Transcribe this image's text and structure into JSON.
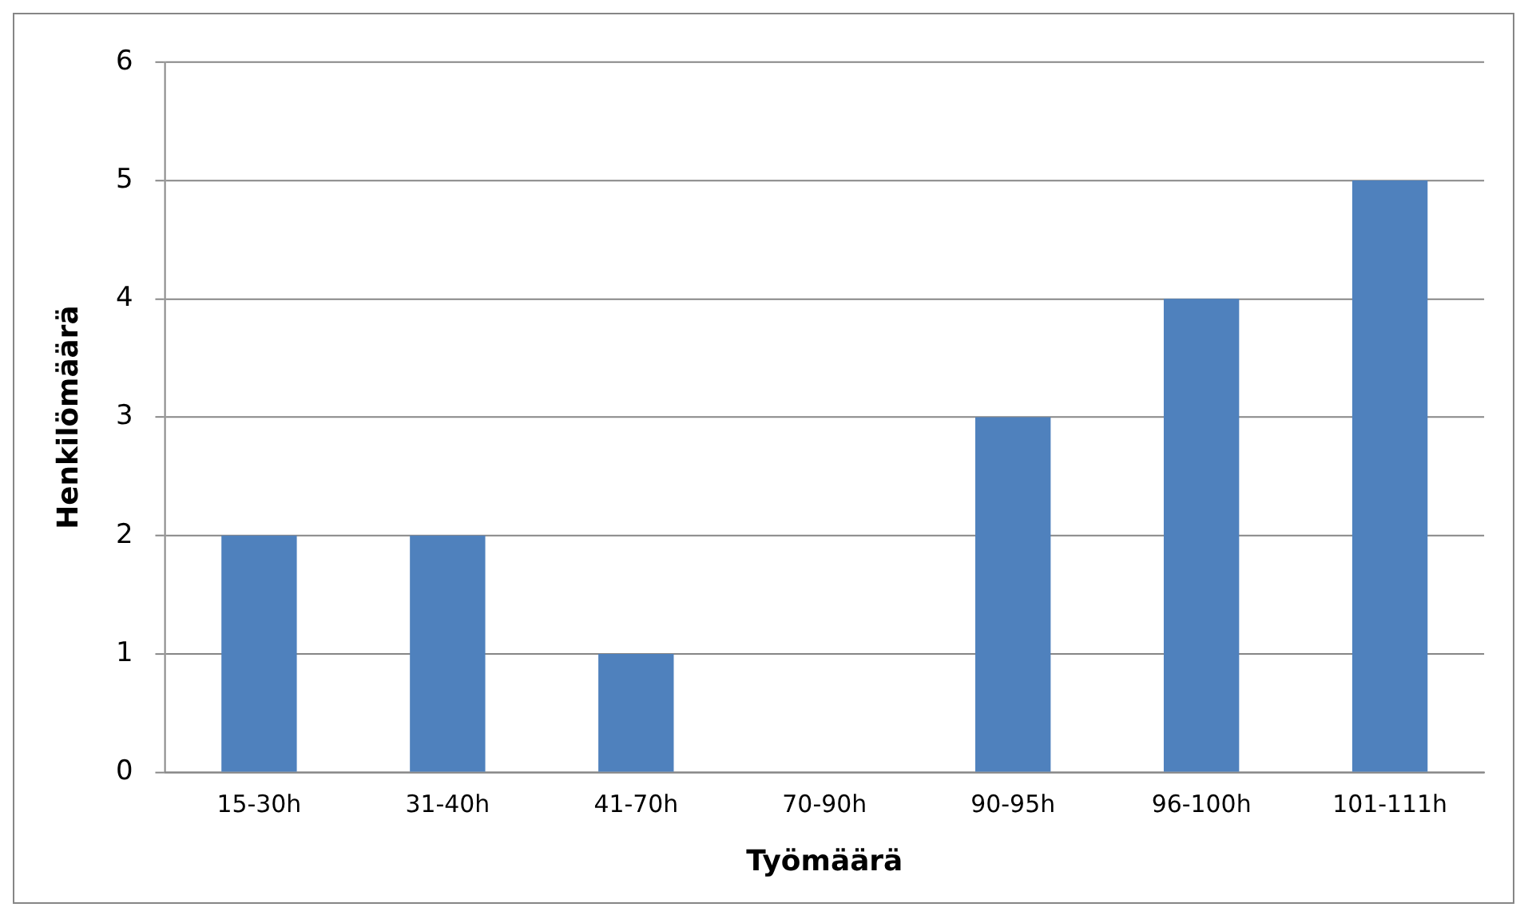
{
  "chart_data": {
    "type": "bar",
    "xlabel": "Työmäärä",
    "ylabel": "Henkilömäärä",
    "categories": [
      "15-30h",
      "31-40h",
      "41-70h",
      "70-90h",
      "90-95h",
      "96-100h",
      "101-111h"
    ],
    "values": [
      2,
      2,
      1,
      0,
      3,
      4,
      5
    ],
    "color": "#4f81bd",
    "ylim": [
      0,
      6
    ],
    "yticks": [
      0,
      1,
      2,
      3,
      4,
      5,
      6
    ],
    "grid": "y",
    "legend": false
  }
}
